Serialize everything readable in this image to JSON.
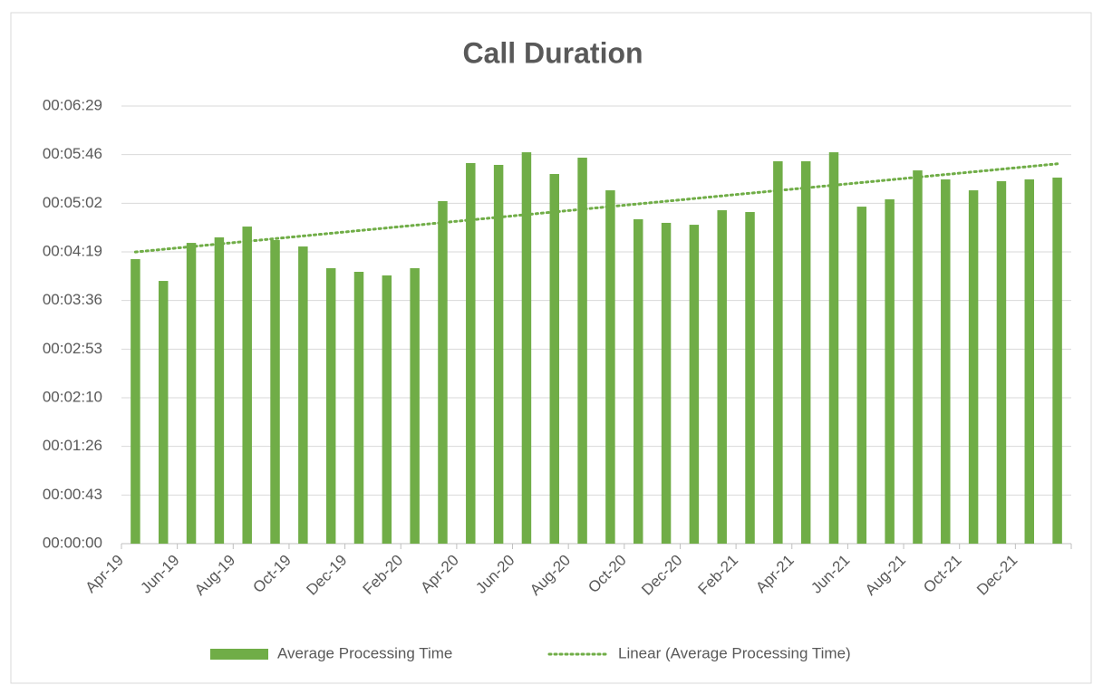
{
  "chart_data": {
    "type": "bar",
    "title": "Call Duration",
    "categories": [
      "Apr-19",
      null,
      "Jun-19",
      null,
      "Aug-19",
      null,
      "Oct-19",
      null,
      "Dec-19",
      null,
      "Feb-20",
      null,
      "Apr-20",
      null,
      "Jun-20",
      null,
      "Aug-20",
      null,
      "Oct-20",
      null,
      "Dec-20",
      null,
      "Feb-21",
      null,
      "Apr-21",
      null,
      "Jun-21",
      null,
      "Aug-21",
      null,
      "Oct-21",
      null,
      "Dec-21",
      null
    ],
    "series": [
      {
        "name": "Average Processing Time",
        "color": "#70ad47",
        "values": [
          252.8,
          233.4,
          267.2,
          272.1,
          281.7,
          269.7,
          264.0,
          244.7,
          241.5,
          238.3,
          244.7,
          304.3,
          338.1,
          336.5,
          347.7,
          328.4,
          342.9,
          313.9,
          288.2,
          285.0,
          283.3,
          296.2,
          294.6,
          339.7,
          339.7,
          347.7,
          299.4,
          305.9,
          331.6,
          323.6,
          313.9,
          322.0,
          323.6,
          325.2
        ]
      }
    ],
    "trendline": {
      "name": "Linear (Average Processing Time)",
      "color": "#70ad47",
      "style": "dotted"
    },
    "ylim": [
      0,
      388.8
    ],
    "yticks": [
      {
        "value": 0,
        "label": "00:00:00"
      },
      {
        "value": 43.2,
        "label": "00:00:43"
      },
      {
        "value": 86.4,
        "label": "00:01:26"
      },
      {
        "value": 129.6,
        "label": "00:02:10"
      },
      {
        "value": 172.8,
        "label": "00:02:53"
      },
      {
        "value": 216,
        "label": "00:03:36"
      },
      {
        "value": 259.2,
        "label": "00:04:19"
      },
      {
        "value": 302.4,
        "label": "00:05:02"
      },
      {
        "value": 345.6,
        "label": "00:05:46"
      },
      {
        "value": 388.8,
        "label": "00:06:29"
      }
    ],
    "grid": true,
    "legend": "bottom"
  }
}
